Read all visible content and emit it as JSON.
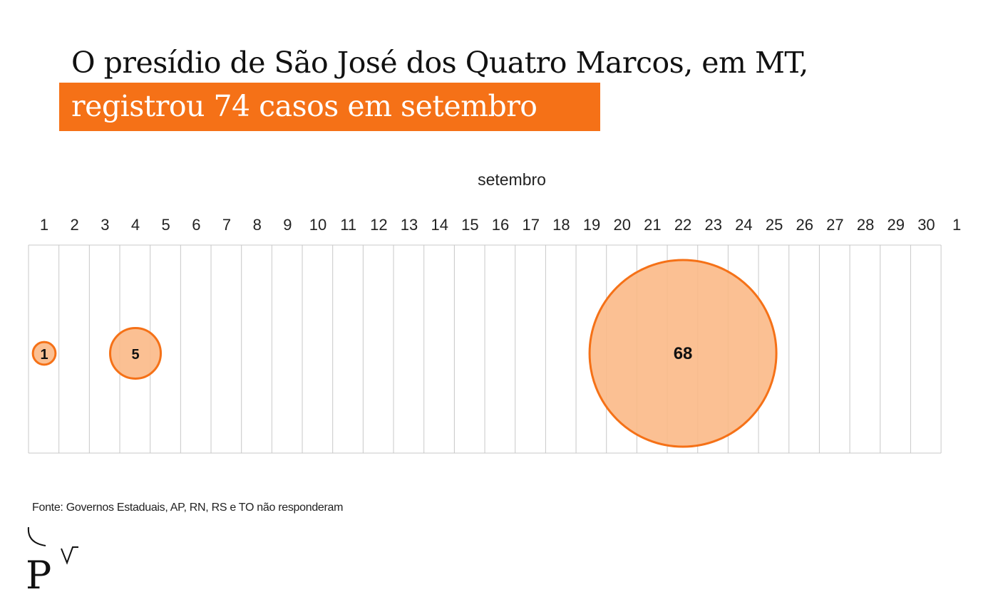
{
  "title_line1": "O presídio de São José dos Quatro Marcos, em MT,",
  "title_line2": "registrou 74 casos em setembro",
  "source": "Fonte: Governos Estaduais, AP, RN, RS e TO não responderam",
  "colors": {
    "accent": "#f57117",
    "bubble_fill": "#fbb987",
    "bubble_stroke": "#f57117",
    "grid": "#c8c8c8",
    "text": "#111111"
  },
  "logo": {
    "icon": "pv-logo-icon"
  },
  "chart_data": {
    "type": "bubble",
    "title": "setembro",
    "x_tick_labels": [
      "1",
      "2",
      "3",
      "4",
      "5",
      "6",
      "7",
      "8",
      "9",
      "10",
      "11",
      "12",
      "13",
      "14",
      "15",
      "16",
      "17",
      "18",
      "19",
      "20",
      "21",
      "22",
      "23",
      "24",
      "25",
      "26",
      "27",
      "28",
      "29",
      "30",
      "1"
    ],
    "bubbles": [
      {
        "day_index": 0,
        "label": "1",
        "value": 1
      },
      {
        "day_index": 3,
        "label": "5",
        "value": 5
      },
      {
        "day_index": 21,
        "label": "68",
        "value": 68
      }
    ],
    "grid": true
  }
}
